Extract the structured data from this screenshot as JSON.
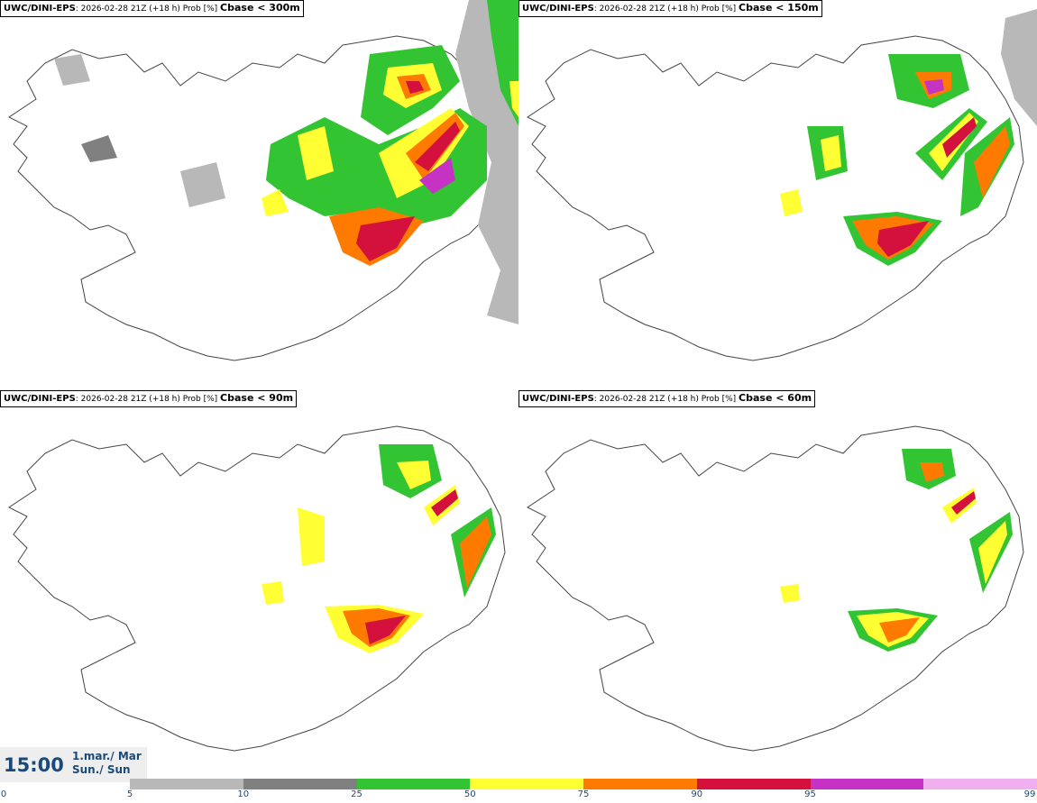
{
  "panels": [
    {
      "model": "UWC/DINI-EPS",
      "run": ": 2026-02-28 21Z (+18 h) Prob [%]",
      "variable": "Cbase < 300m"
    },
    {
      "model": "UWC/DINI-EPS",
      "run": ": 2026-02-28 21Z (+18 h) Prob [%]",
      "variable": "Cbase < 150m"
    },
    {
      "model": "UWC/DINI-EPS",
      "run": ": 2026-02-28 21Z (+18 h) Prob [%]",
      "variable": "Cbase < 90m"
    },
    {
      "model": "UWC/DINI-EPS",
      "run": ": 2026-02-28 21Z (+18 h) Prob [%]",
      "variable": "Cbase < 60m"
    }
  ],
  "time": {
    "clock": "15:00",
    "date": "1.mar./ Mar",
    "day": "Sun./ Sun"
  },
  "colorbar": {
    "ticks": [
      "0",
      "5",
      "10",
      "25",
      "50",
      "75",
      "90",
      "95",
      "99"
    ],
    "colors": [
      "#b8b8b8",
      "#808080",
      "#33c433",
      "#ffff33",
      "#ff7a00",
      "#d4103c",
      "#c433c4",
      "#f0b0f0"
    ]
  }
}
